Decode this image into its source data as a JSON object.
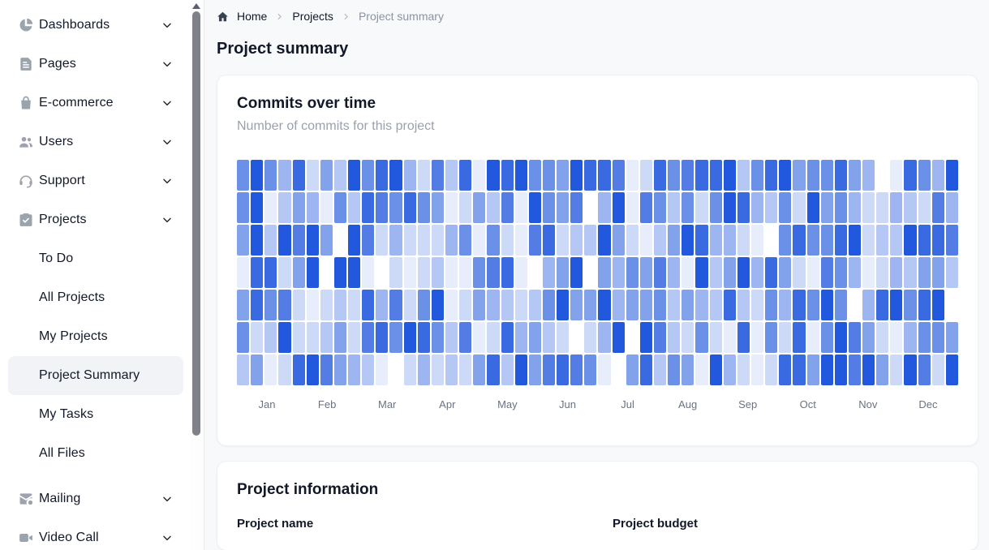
{
  "sidebar": {
    "items": [
      {
        "label": "Dashboards",
        "icon": "dashboards",
        "expandable": true
      },
      {
        "label": "Pages",
        "icon": "pages",
        "expandable": true
      },
      {
        "label": "E-commerce",
        "icon": "ecommerce",
        "expandable": true
      },
      {
        "label": "Users",
        "icon": "users",
        "expandable": true
      },
      {
        "label": "Support",
        "icon": "support",
        "expandable": true
      },
      {
        "label": "Projects",
        "icon": "projects",
        "expandable": true
      },
      {
        "label": "To Do",
        "sub": true
      },
      {
        "label": "All Projects",
        "sub": true
      },
      {
        "label": "My Projects",
        "sub": true
      },
      {
        "label": "Project Summary",
        "sub": true,
        "active": true
      },
      {
        "label": "My Tasks",
        "sub": true
      },
      {
        "label": "All Files",
        "sub": true
      },
      {
        "label": "Mailing",
        "icon": "mailing",
        "expandable": true,
        "section_gap": true
      },
      {
        "label": "Video Call",
        "icon": "video-call",
        "expandable": true
      }
    ]
  },
  "breadcrumb": {
    "items": [
      {
        "label": "Home"
      },
      {
        "label": "Projects"
      },
      {
        "label": "Project summary",
        "current": true
      }
    ]
  },
  "page": {
    "title": "Project summary"
  },
  "commits_card": {
    "title": "Commits over time",
    "subtitle": "Number of commits for this project"
  },
  "chart_data": {
    "type": "heatmap",
    "title": "Commits over time",
    "subtitle": "Number of commits for this project",
    "x_labels": [
      "Jan",
      "Feb",
      "Mar",
      "Apr",
      "May",
      "Jun",
      "Jul",
      "Aug",
      "Sep",
      "Oct",
      "Nov",
      "Dec"
    ],
    "rows": 7,
    "cols": 52,
    "legend": "none",
    "value_scale": "intensity 0 (white, no commits) to 9 (strong blue, most commits)",
    "base_color": "#2158dd",
    "values": [
      [
        6,
        9,
        6,
        4,
        8,
        2,
        5,
        3,
        9,
        6,
        8,
        9,
        4,
        2,
        7,
        3,
        8,
        1,
        9,
        8,
        9,
        6,
        6,
        5,
        9,
        8,
        8,
        7,
        1,
        2,
        8,
        6,
        7,
        8,
        8,
        9,
        3,
        6,
        8,
        9,
        5,
        6,
        6,
        8,
        5,
        4,
        0,
        1,
        8,
        6,
        4,
        9
      ],
      [
        6,
        9,
        1,
        3,
        5,
        4,
        1,
        6,
        3,
        8,
        7,
        6,
        8,
        6,
        5,
        1,
        2,
        5,
        3,
        7,
        1,
        9,
        6,
        5,
        7,
        0,
        4,
        9,
        1,
        7,
        6,
        3,
        6,
        2,
        6,
        9,
        8,
        4,
        3,
        6,
        2,
        9,
        5,
        6,
        4,
        2,
        2,
        4,
        3,
        2,
        7,
        4
      ],
      [
        5,
        9,
        3,
        9,
        7,
        9,
        5,
        0,
        9,
        7,
        2,
        4,
        2,
        2,
        2,
        4,
        6,
        1,
        6,
        2,
        1,
        7,
        8,
        2,
        3,
        3,
        9,
        5,
        2,
        1,
        3,
        5,
        9,
        8,
        4,
        4,
        2,
        1,
        0,
        6,
        8,
        6,
        6,
        8,
        9,
        2,
        3,
        3,
        9,
        8,
        8,
        7
      ],
      [
        1,
        8,
        8,
        2,
        5,
        9,
        0,
        9,
        9,
        1,
        0,
        2,
        1,
        2,
        3,
        1,
        1,
        6,
        7,
        8,
        1,
        0,
        4,
        5,
        9,
        0,
        5,
        4,
        6,
        5,
        7,
        4,
        1,
        9,
        3,
        5,
        9,
        4,
        8,
        5,
        2,
        1,
        7,
        6,
        4,
        1,
        2,
        4,
        3,
        5,
        5,
        3
      ],
      [
        5,
        8,
        6,
        7,
        2,
        1,
        2,
        3,
        2,
        8,
        4,
        7,
        2,
        6,
        9,
        1,
        2,
        5,
        4,
        3,
        2,
        3,
        6,
        9,
        5,
        5,
        9,
        4,
        5,
        5,
        6,
        3,
        5,
        4,
        3,
        8,
        3,
        2,
        6,
        4,
        8,
        6,
        9,
        6,
        0,
        4,
        8,
        9,
        6,
        8,
        9,
        0
      ],
      [
        6,
        2,
        3,
        9,
        2,
        2,
        3,
        5,
        2,
        7,
        8,
        6,
        9,
        8,
        6,
        3,
        7,
        1,
        2,
        8,
        4,
        5,
        3,
        2,
        0,
        2,
        4,
        9,
        0,
        9,
        7,
        3,
        2,
        6,
        2,
        1,
        8,
        1,
        6,
        2,
        8,
        1,
        6,
        9,
        7,
        5,
        2,
        1,
        4,
        6,
        6,
        5
      ],
      [
        3,
        5,
        1,
        2,
        8,
        9,
        7,
        5,
        4,
        3,
        1,
        0,
        2,
        4,
        2,
        3,
        2,
        5,
        8,
        3,
        9,
        5,
        7,
        8,
        7,
        6,
        1,
        0,
        5,
        8,
        3,
        6,
        5,
        1,
        9,
        4,
        2,
        1,
        2,
        8,
        8,
        5,
        9,
        9,
        7,
        9,
        5,
        2,
        9,
        7,
        2,
        9
      ]
    ]
  },
  "info_card": {
    "title": "Project information",
    "fields": [
      {
        "label": "Project name"
      },
      {
        "label": "Project budget"
      }
    ]
  },
  "colors": {
    "accent_blue": "#2158dd",
    "page_background": "#f8f9fb",
    "card_background": "#ffffff",
    "sidebar_icon": "#9ca3af",
    "text_primary": "#111827",
    "text_muted": "#9aa1ad",
    "month_label": "#6b7280",
    "active_item_background": "#f2f3f6"
  }
}
